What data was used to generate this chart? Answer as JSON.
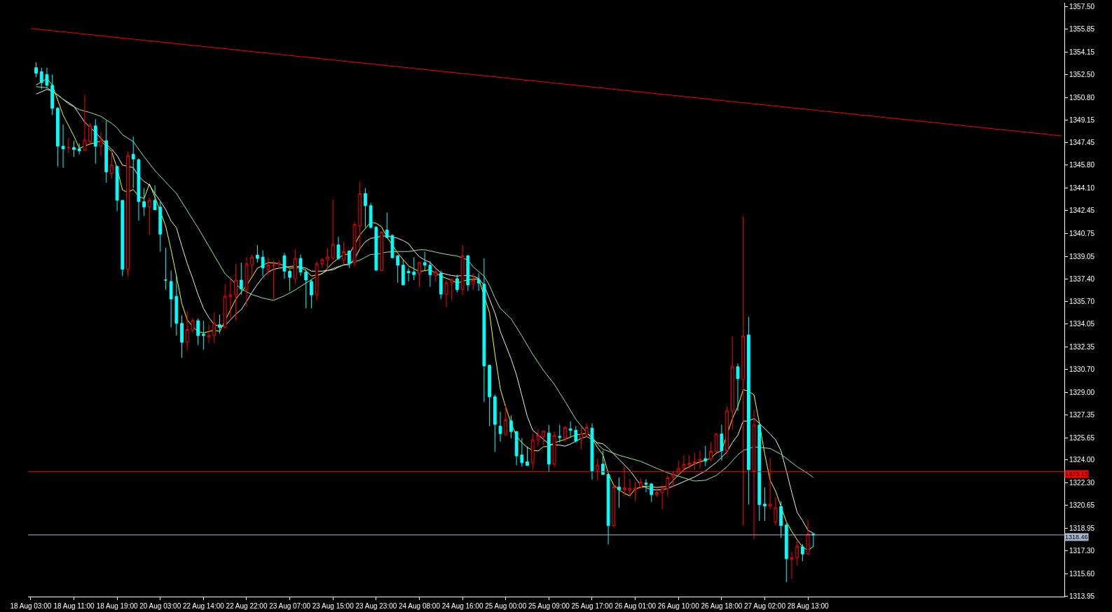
{
  "chart_data": {
    "type": "candlestick",
    "categories": [
      "18 Aug 03:00",
      null,
      null,
      null,
      null,
      null,
      null,
      null,
      "18 Aug 11:00",
      null,
      null,
      null,
      null,
      null,
      null,
      null,
      "18 Aug 19:00",
      null,
      null,
      null,
      null,
      null,
      null,
      null,
      "20 Aug 03:00",
      null,
      null,
      null,
      null,
      null,
      null,
      null,
      "22 Aug 14:00",
      null,
      null,
      null,
      null,
      null,
      null,
      null,
      "22 Aug 22:00",
      null,
      null,
      null,
      null,
      null,
      null,
      null,
      "23 Aug 07:00",
      null,
      null,
      null,
      null,
      null,
      null,
      null,
      "23 Aug 15:00",
      null,
      null,
      null,
      null,
      null,
      null,
      null,
      "23 Aug 23:00",
      null,
      null,
      null,
      null,
      null,
      null,
      null,
      "24 Aug 08:00",
      null,
      null,
      null,
      null,
      null,
      null,
      null,
      "24 Aug 16:00",
      null,
      null,
      null,
      null,
      null,
      null,
      null,
      "25 Aug 00:00",
      null,
      null,
      null,
      null,
      null,
      null,
      null,
      "25 Aug 09:00",
      null,
      null,
      null,
      null,
      null,
      null,
      null,
      "25 Aug 17:00",
      null,
      null,
      null,
      null,
      null,
      null,
      null,
      "26 Aug 01:00",
      null,
      null,
      null,
      null,
      null,
      null,
      null,
      "26 Aug 10:00",
      null,
      null,
      null,
      null,
      null,
      null,
      null,
      "26 Aug 18:00",
      null,
      null,
      null,
      null,
      null,
      null,
      null,
      "27 Aug 02:00",
      null,
      null,
      null,
      null,
      null,
      null,
      null,
      "28 Aug 13:00",
      null,
      null,
      null,
      null,
      null,
      null,
      null,
      null,
      null,
      null,
      null,
      null,
      null,
      null,
      null,
      null,
      null,
      null,
      null,
      null,
      null,
      null,
      null,
      null,
      null,
      null,
      null,
      null,
      null,
      null,
      null,
      null,
      null,
      null,
      null,
      null,
      null,
      null,
      null,
      null,
      null,
      null,
      null,
      null,
      null,
      null,
      null
    ],
    "ohlc": [
      null,
      [
        1353.0,
        1353.4,
        1352.3,
        1352.6
      ],
      [
        1352.7,
        1353.0,
        1351.4,
        1351.9
      ],
      [
        1352.5,
        1353.0,
        1351.5,
        1351.7
      ],
      [
        1351.7,
        1352.5,
        1349.5,
        1350.0
      ],
      [
        1350.0,
        1350.1,
        1345.7,
        1347.2
      ],
      [
        1347.2,
        1348.8,
        1345.6,
        1347.0
      ],
      [
        1347.1,
        1347.8,
        1346.7,
        1347.1
      ],
      [
        1347.1,
        1347.6,
        1346.4,
        1346.95
      ],
      [
        1347.0,
        1347.4,
        1346.6,
        1346.85
      ],
      [
        1346.9,
        1351.0,
        1346.85,
        1347.65
      ],
      [
        1347.5,
        1348.9,
        1347.4,
        1348.7
      ],
      [
        1348.7,
        1349.2,
        1345.9,
        1347.2
      ],
      [
        1347.2,
        1348.3,
        1346.5,
        1347.6
      ],
      [
        1347.6,
        1349.1,
        1344.5,
        1345.3
      ],
      [
        1345.2,
        1346.9,
        1344.8,
        1345.8
      ],
      [
        1345.7,
        1345.75,
        1342.4,
        1343.2
      ],
      [
        1343.2,
        1343.2,
        1337.6,
        1338.1
      ],
      [
        1338.1,
        1346.8,
        1337.6,
        1346.5
      ],
      [
        1346.6,
        1347.9,
        1344.1,
        1346.25
      ],
      [
        1346.2,
        1346.3,
        1341.7,
        1343.1
      ],
      [
        1343.1,
        1344.1,
        1342.05,
        1342.7
      ],
      [
        1342.7,
        1343.4,
        1340.65,
        1343.2
      ],
      [
        1343.2,
        1344.3,
        1342.48,
        1342.5
      ],
      [
        1342.7,
        1343.1,
        1339.4,
        1340.7
      ],
      [
        1337.3,
        1339.7,
        1336.6,
        1337.3
      ],
      [
        1337.2,
        1338.0,
        1333.8,
        1335.9
      ],
      [
        1336.1,
        1337.6,
        1333.2,
        1334.1
      ],
      [
        1334.1,
        1334.7,
        1331.55,
        1332.7
      ],
      [
        1332.7,
        1335.0,
        1332.15,
        1333.65
      ],
      [
        1333.6,
        1334.5,
        1333.4,
        1334.3
      ],
      [
        1334.3,
        1334.45,
        1332.5,
        1333.2
      ],
      [
        1333.3,
        1334.3,
        1332.15,
        1333.2
      ],
      [
        1333.1,
        1334.0,
        1332.65,
        1333.2
      ],
      [
        1333.2,
        1334.9,
        1332.65,
        1334.1
      ],
      [
        1334.0,
        1334.75,
        1333.35,
        1333.8
      ],
      [
        1333.8,
        1337.0,
        1333.7,
        1336.1
      ],
      [
        1336.1,
        1337.4,
        1334.5,
        1336.2
      ],
      [
        1336.2,
        1338.5,
        1334.3,
        1337.3
      ],
      [
        1337.3,
        1338.6,
        1336.2,
        1336.65
      ],
      [
        1336.6,
        1339.0,
        1335.3,
        1338.5
      ],
      [
        1338.4,
        1339.2,
        1337.6,
        1339.0
      ],
      [
        1339.15,
        1339.9,
        1338.6,
        1338.9
      ],
      [
        1339.0,
        1339.5,
        1337.6,
        1338.2
      ],
      [
        1338.1,
        1339.0,
        1337.6,
        1338.4
      ],
      [
        1338.4,
        1338.7,
        1335.9,
        1338.4
      ],
      [
        1338.45,
        1338.8,
        1338.1,
        1338.55
      ],
      [
        1339.1,
        1339.3,
        1337.4,
        1337.96
      ],
      [
        1337.95,
        1338.1,
        1336.5,
        1337.5
      ],
      [
        1337.4,
        1339.6,
        1337.0,
        1338.9
      ],
      [
        1338.9,
        1339.2,
        1337.6,
        1337.9
      ],
      [
        1337.9,
        1338.1,
        1335.2,
        1337.3
      ],
      [
        1337.2,
        1337.3,
        1335.2,
        1336.2
      ],
      [
        1336.2,
        1338.7,
        1335.8,
        1338.5
      ],
      [
        1338.5,
        1338.95,
        1338.2,
        1338.8
      ],
      [
        1338.8,
        1339.65,
        1338.1,
        1339.0
      ],
      [
        1338.95,
        1343.25,
        1338.8,
        1339.93
      ],
      [
        1339.9,
        1340.5,
        1338.8,
        1338.9
      ],
      [
        1338.8,
        1340.1,
        1338.5,
        1339.4
      ],
      [
        1339.45,
        1339.5,
        1338.2,
        1338.56
      ],
      [
        1338.6,
        1341.6,
        1338.3,
        1341.4
      ],
      [
        1341.3,
        1344.6,
        1339.6,
        1343.7
      ],
      [
        1343.7,
        1344.1,
        1341.2,
        1342.8
      ],
      [
        1342.8,
        1343.0,
        1341.1,
        1341.2
      ],
      [
        1341.2,
        1341.3,
        1337.95,
        1338.05
      ],
      [
        1338.0,
        1340.9,
        1337.95,
        1340.85
      ],
      [
        1341.0,
        1342.3,
        1340.4,
        1340.45
      ],
      [
        1340.6,
        1340.7,
        1338.9,
        1338.95
      ],
      [
        1339.1,
        1339.15,
        1337.1,
        1338.4
      ],
      [
        1338.4,
        1338.8,
        1336.9,
        1336.95
      ],
      [
        1337.96,
        1338.2,
        1337.2,
        1337.84
      ],
      [
        1337.9,
        1339.0,
        1337.3,
        1337.7
      ],
      [
        1337.76,
        1338.65,
        1336.8,
        1338.6
      ],
      [
        1338.6,
        1339.4,
        1338.0,
        1338.4
      ],
      [
        1338.4,
        1338.7,
        1336.8,
        1337.7
      ],
      [
        1337.64,
        1338.1,
        1337.2,
        1337.9
      ],
      [
        1337.8,
        1338.0,
        1335.9,
        1336.26
      ],
      [
        1336.26,
        1337.3,
        1335.3,
        1337.1
      ],
      [
        1337.1,
        1337.4,
        1335.8,
        1337.34
      ],
      [
        1337.4,
        1337.7,
        1336.4,
        1336.6
      ],
      [
        1336.6,
        1339.9,
        1336.2,
        1339.1
      ],
      [
        1339.1,
        1339.15,
        1336.5,
        1336.94
      ],
      [
        1336.99,
        1337.8,
        1336.6,
        1337.3
      ],
      [
        1337.33,
        1337.8,
        1336.5,
        1337.08
      ],
      [
        1337.0,
        1338.9,
        1328.3,
        1330.96
      ],
      [
        1331.0,
        1331.05,
        1326.5,
        1328.67
      ],
      [
        1328.67,
        1328.84,
        1324.6,
        1326.63
      ],
      [
        1326.5,
        1327.56,
        1325.35,
        1325.95
      ],
      [
        1325.86,
        1328.0,
        1325.8,
        1326.97
      ],
      [
        1326.9,
        1327.3,
        1325.6,
        1326.1
      ],
      [
        1326.1,
        1326.15,
        1323.6,
        1324.3
      ],
      [
        1324.37,
        1325.6,
        1323.5,
        1323.8
      ],
      [
        1323.86,
        1325.0,
        1323.57,
        1323.6
      ],
      [
        1323.8,
        1325.95,
        1323.3,
        1325.49
      ],
      [
        1325.49,
        1326.3,
        1325.05,
        1325.83
      ],
      [
        1325.73,
        1326.2,
        1325.1,
        1326.12
      ],
      [
        1326.0,
        1326.6,
        1323.1,
        1323.7
      ],
      [
        1323.7,
        1326.1,
        1323.45,
        1325.8
      ],
      [
        1325.75,
        1326.6,
        1325.3,
        1325.66
      ],
      [
        1325.6,
        1326.5,
        1325.35,
        1326.41
      ],
      [
        1326.3,
        1326.85,
        1325.7,
        1326.2
      ],
      [
        1326.2,
        1326.5,
        1325.27,
        1325.4
      ],
      [
        1325.6,
        1326.46,
        1324.8,
        1325.95
      ],
      [
        1325.86,
        1326.7,
        1325.7,
        1326.4
      ],
      [
        1326.36,
        1326.7,
        1322.55,
        1323.19
      ],
      [
        1323.28,
        1324.1,
        1322.5,
        1323.63
      ],
      [
        1323.7,
        1324.7,
        1322.9,
        1322.93
      ],
      [
        1322.93,
        1322.95,
        1317.75,
        1319.15
      ],
      [
        1319.15,
        1322.05,
        1319.0,
        1322.0
      ],
      [
        1322.0,
        1322.7,
        1320.47,
        1321.8
      ],
      [
        1321.8,
        1323.5,
        1321.35,
        1321.93
      ],
      [
        1321.75,
        1322.58,
        1321.3,
        1321.88
      ],
      [
        1321.82,
        1322.35,
        1320.95,
        1321.93
      ],
      [
        1321.99,
        1322.67,
        1321.93,
        1322.35
      ],
      [
        1322.3,
        1322.58,
        1321.62,
        1322.2
      ],
      [
        1322.23,
        1322.3,
        1320.9,
        1321.44
      ],
      [
        1321.44,
        1321.88,
        1321.27,
        1321.58
      ],
      [
        1321.58,
        1322.14,
        1320.35,
        1321.88
      ],
      [
        1321.88,
        1322.88,
        1321.3,
        1322.67
      ],
      [
        1322.76,
        1323.11,
        1321.99,
        1322.93
      ],
      [
        1322.98,
        1323.95,
        1322.93,
        1323.37
      ],
      [
        1323.4,
        1324.34,
        1323.07,
        1323.68
      ],
      [
        1323.67,
        1324.34,
        1323.34,
        1323.75
      ],
      [
        1323.77,
        1324.51,
        1323.28,
        1323.86
      ],
      [
        1323.95,
        1324.69,
        1323.34,
        1324.04
      ],
      [
        1324.1,
        1325.04,
        1323.55,
        1323.93
      ],
      [
        1324.07,
        1325.34,
        1323.9,
        1324.65
      ],
      [
        1324.65,
        1326.0,
        1324.6,
        1325.92
      ],
      [
        1325.92,
        1326.62,
        1323.95,
        1324.69
      ],
      [
        1324.69,
        1327.97,
        1324.43,
        1327.62
      ],
      [
        1327.62,
        1333.12,
        1326.27,
        1330.92
      ],
      [
        1330.89,
        1331.13,
        1327.62,
        1330.01
      ],
      [
        1329.96,
        1342.04,
        1319.16,
        1333.15
      ],
      [
        1333.24,
        1334.58,
        1320.7,
        1323.28
      ],
      [
        1323.19,
        1327.71,
        1318.13,
        1326.58
      ],
      [
        1326.58,
        1326.6,
        1319.5,
        1320.7
      ],
      [
        1320.74,
        1321.97,
        1319.5,
        1320.6
      ],
      [
        1320.6,
        1324.16,
        1320.35,
        1320.74
      ],
      [
        1319.42,
        1321.23,
        1319.19,
        1320.47
      ],
      [
        1320.56,
        1320.95,
        1318.24,
        1319.15
      ],
      [
        1319.19,
        1319.33,
        1314.97,
        1316.7
      ],
      [
        1316.63,
        1317.26,
        1315.2,
        1316.77
      ],
      [
        1316.79,
        1318.05,
        1316.2,
        1317.61
      ],
      [
        1317.58,
        1317.79,
        1316.52,
        1317.05
      ],
      [
        1317.05,
        1319.59,
        1317.0,
        1318.54
      ],
      [
        1318.54,
        1318.56,
        1317.57,
        1318.46
      ],
      null,
      null,
      null,
      null,
      null,
      null,
      null,
      null,
      null,
      null,
      null,
      null,
      null,
      null,
      null,
      null,
      null,
      null,
      null,
      null,
      null,
      null,
      null,
      null,
      null,
      null,
      null,
      null,
      null,
      null,
      null,
      null,
      null,
      null,
      null,
      null,
      null,
      null,
      null,
      null,
      null,
      null,
      null,
      null,
      null,
      null
    ],
    "series": [
      {
        "type": "line",
        "color": "#ffff00",
        "values": [
          null,
          1351.72,
          null,
          1352.2,
          1351.72,
          null,
          1349.5,
          null,
          1347.95,
          1347.05,
          null,
          1347.36,
          null,
          1347.58,
          null,
          1346.8,
          1345.57,
          1343.96,
          1343.79,
          1344.0,
          1343.48,
          1343.33,
          1344.4,
          1343.45,
          null,
          1341.3,
          1339.54,
          1337.6,
          1335.55,
          1334.36,
          1333.85,
          1333.5,
          1333.39,
          null,
          1333.6,
          1333.5,
          null,
          null,
          1335.9,
          null,
          1336.9,
          null,
          1338.18,
          null,
          1338.6,
          null,
          1338.52,
          null,
          1338.18,
          null,
          1338.23,
          1338.0,
          1337.6,
          null,
          1337.76,
          null,
          1338.6,
          null,
          1339.2,
          1339.2,
          null,
          1340.65,
          null,
          1341.58,
          1341.5,
          1341.24,
          1340.48,
          null,
          1339.29,
          null,
          1338.35,
          null,
          1337.93,
          null,
          1338.06,
          null,
          1337.59,
          null,
          1337.28,
          1337.08,
          null,
          1337.33,
          null,
          1337.39,
          null,
          1334.87,
          1331.81,
          1329.26,
          1327.9,
          1326.71,
          1325.78,
          1325.27,
          1324.93,
          1324.71,
          1324.67,
          1324.98,
          1325.0,
          1325.27,
          null,
          1325.52,
          null,
          1325.86,
          1325.9,
          1326.0,
          1325.6,
          1324.93,
          1324.4,
          1323.02,
          1322.14,
          1321.79,
          1321.53,
          1321.35,
          1321.88,
          null,
          1322.05,
          null,
          1321.97,
          null,
          1322.05,
          1322.49,
          null,
          1323.28,
          null,
          1323.72,
          null,
          1323.99,
          1324.11,
          1324.51,
          1324.69,
          null,
          1327.06,
          1327.94,
          1329.2,
          1329.08,
          1328.82,
          1326.71,
          1324.42,
          1322.49,
          1321.7,
          null,
          1319.42,
          1318.72,
          1318.1,
          1317.57,
          1317.31,
          1317.61,
          null,
          null,
          null,
          null,
          null,
          null,
          null,
          null,
          null,
          null,
          null,
          null,
          null,
          null,
          null,
          null,
          null,
          null,
          null,
          null,
          null,
          null,
          null,
          null,
          null,
          null,
          null,
          null,
          null,
          null,
          null,
          null,
          null,
          null,
          null,
          null,
          null,
          null,
          null,
          null,
          null,
          null,
          null,
          null,
          null,
          null
        ]
      },
      {
        "type": "line",
        "color": "#f0f0f0",
        "values": [
          null,
          1351.05,
          1351.22,
          1351.4,
          1351.27,
          null,
          1350.67,
          null,
          1350.16,
          null,
          1348.97,
          null,
          1348.21,
          null,
          1347.36,
          1346.97,
          1346.51,
          1345.8,
          1345.71,
          1345.61,
          1344.98,
          1344.59,
          1344.33,
          1343.7,
          1343.14,
          1342.52,
          1341.67,
          1341.16,
          1339.8,
          1338.52,
          1337.42,
          1336.23,
          1335.21,
          1334.53,
          1334.02,
          1333.88,
          1333.93,
          1334.36,
          1334.78,
          1335.12,
          1335.72,
          1336.4,
          1336.99,
          1337.5,
          1337.89,
          1338.1,
          1338.18,
          null,
          1338.3,
          1338.35,
          null,
          1338.18,
          1337.96,
          null,
          1337.96,
          null,
          1338.06,
          null,
          1338.44,
          1338.44,
          1338.86,
          1339.63,
          1340.14,
          1340.39,
          1340.44,
          1340.56,
          1340.56,
          1340.48,
          1340.39,
          1340.22,
          1340.0,
          1339.46,
          1339.03,
          1338.78,
          1338.61,
          1338.18,
          1337.84,
          1337.73,
          1337.64,
          1337.59,
          1337.64,
          1337.64,
          1337.59,
          1337.42,
          1336.91,
          1335.89,
          1334.87,
          1333.51,
          1332.49,
          1331.47,
          1330.28,
          1328.75,
          1327.22,
          1326.2,
          1325.86,
          1325.52,
          1325.18,
          1325.1,
          1325.1,
          1325.02,
          1325.18,
          1325.39,
          1325.6,
          1325.73,
          1325.52,
          1325.27,
          1325.2,
          1324.86,
          null,
          1324.04,
          null,
          1323.23,
          null,
          1322.14,
          null,
          1321.79,
          null,
          1321.79,
          null,
          1322.05,
          null,
          1322.4,
          null,
          1322.75,
          null,
          1323.19,
          null,
          1323.81,
          null,
          1324.6,
          1325.3,
          1325.83,
          1326.88,
          1326.88,
          1327.06,
          1326.71,
          null,
          1325.92,
          1325.48,
          1324.69,
          1323.19,
          1321.6,
          1320.12,
          1319.51,
          1318.8,
          1318.59,
          null,
          null,
          null,
          null,
          null,
          null,
          null,
          null,
          null,
          null,
          null,
          null,
          null,
          null,
          null,
          null,
          null,
          null,
          null,
          null,
          null,
          null,
          null,
          null,
          null,
          null,
          null,
          null,
          null,
          null,
          null,
          null,
          null,
          null,
          null,
          null,
          null,
          null,
          null,
          null,
          null,
          null,
          null,
          null,
          null,
          null
        ]
      },
      {
        "type": "line",
        "color": "#98e898",
        "values": [
          null,
          1351.6,
          null,
          1351.52,
          null,
          1351.0,
          null,
          1350.33,
          null,
          1349.9,
          null,
          1349.69,
          null,
          1349.4,
          null,
          1348.89,
          1348.55,
          1348.04,
          null,
          1347.53,
          null,
          1346.42,
          null,
          1345.4,
          null,
          1344.55,
          null,
          1343.7,
          null,
          1342.43,
          null,
          1341.16,
          null,
          1339.8,
          null,
          1338.44,
          1337.76,
          1337.42,
          1336.99,
          1336.65,
          null,
          1336.23,
          null,
          1335.97,
          null,
          1335.8,
          null,
          1336.14,
          null,
          1336.57,
          null,
          1337.08,
          null,
          1337.59,
          null,
          1338.01,
          null,
          1338.3,
          null,
          1338.52,
          null,
          1338.78,
          null,
          1339.2,
          1339.2,
          null,
          1339.37,
          null,
          1339.41,
          null,
          1339.41,
          null,
          1339.54,
          1339.54,
          null,
          1339.37,
          null,
          1339.2,
          null,
          1339.08,
          null,
          1338.78,
          1338.27,
          1337.93,
          1337.59,
          1336.91,
          1335.97,
          1335.21,
          null,
          1334.44,
          null,
          1333.17,
          null,
          1331.81,
          null,
          1330.62,
          null,
          1329.6,
          null,
          1328.33,
          null,
          1327.0,
          null,
          1326.03,
          1325.7,
          1325.18,
          1324.8,
          null,
          null,
          1324.35,
          null,
          null,
          null,
          1323.9,
          null,
          1323.55,
          null,
          null,
          1323.05,
          null,
          1322.8,
          null,
          null,
          1322.44,
          null,
          1322.5,
          null,
          1322.85,
          null,
          1323.5,
          null,
          1324.38,
          1324.7,
          null,
          1324.97,
          null,
          null,
          1324.85,
          null,
          1324.42,
          null,
          null,
          1323.5,
          null,
          1323.0,
          1322.7,
          null,
          null,
          null,
          null,
          null,
          null,
          null,
          null,
          null,
          null,
          null,
          null,
          null,
          null,
          null,
          null,
          null,
          null,
          null,
          null,
          null,
          null,
          null,
          null,
          null,
          null,
          null,
          null,
          null,
          null,
          null,
          null,
          null,
          null,
          null,
          null,
          null,
          null,
          null,
          null,
          null,
          null,
          null,
          null,
          null,
          null
        ]
      },
      {
        "type": "line",
        "color": "#ff0000",
        "values": [
          1355.9,
          null,
          null,
          null,
          null,
          null,
          null,
          null,
          null,
          null,
          null,
          null,
          null,
          null,
          null,
          null,
          null,
          null,
          null,
          null,
          null,
          null,
          null,
          null,
          null,
          null,
          null,
          null,
          null,
          null,
          null,
          null,
          null,
          null,
          null,
          null,
          null,
          null,
          null,
          null,
          null,
          null,
          null,
          null,
          null,
          null,
          null,
          null,
          null,
          null,
          null,
          null,
          null,
          null,
          null,
          null,
          null,
          null,
          null,
          null,
          null,
          null,
          null,
          null,
          null,
          null,
          null,
          null,
          null,
          null,
          null,
          null,
          null,
          null,
          null,
          null,
          null,
          null,
          null,
          null,
          null,
          null,
          null,
          null,
          null,
          null,
          null,
          null,
          null,
          null,
          null,
          null,
          null,
          null,
          null,
          null,
          null,
          null,
          null,
          null,
          null,
          null,
          null,
          null,
          null,
          null,
          null,
          null,
          null,
          null,
          null,
          null,
          null,
          null,
          null,
          null,
          null,
          null,
          null,
          null,
          null,
          null,
          null,
          null,
          null,
          null,
          null,
          null,
          null,
          null,
          null,
          null,
          null,
          null,
          null,
          null,
          null,
          null,
          null,
          null,
          null,
          null,
          null,
          null,
          null,
          null,
          null,
          null,
          null,
          null,
          null,
          null,
          null,
          null,
          null,
          null,
          null,
          null,
          null,
          null,
          null,
          null,
          null,
          null,
          null,
          null,
          null,
          null,
          null,
          null,
          null,
          null,
          null,
          null,
          null,
          null,
          null,
          null,
          null,
          null,
          null,
          null,
          null,
          null,
          null,
          null,
          null,
          null,
          null,
          null,
          null,
          1347.96
        ]
      }
    ],
    "ylim": [
      1313.9,
      1357.8
    ],
    "yticks": [
      {
        "value": 1357.5,
        "label": "1357.50"
      },
      {
        "value": 1355.85,
        "label": "1355.85"
      },
      {
        "value": 1354.15,
        "label": "1354.15"
      },
      {
        "value": 1352.5,
        "label": "1352.50"
      },
      {
        "value": 1350.8,
        "label": "1350.80"
      },
      {
        "value": 1349.15,
        "label": "1349.15"
      },
      {
        "value": 1347.45,
        "label": "1347.45"
      },
      {
        "value": 1345.8,
        "label": "1345.80"
      },
      {
        "value": 1344.1,
        "label": "1344.10"
      },
      {
        "value": 1342.45,
        "label": "1342.45"
      },
      {
        "value": 1340.75,
        "label": "1340.75"
      },
      {
        "value": 1339.05,
        "label": "1339.05"
      },
      {
        "value": 1337.4,
        "label": "1337.40"
      },
      {
        "value": 1335.7,
        "label": "1335.70"
      },
      {
        "value": 1334.05,
        "label": "1334.05"
      },
      {
        "value": 1332.35,
        "label": "1332.35"
      },
      {
        "value": 1330.7,
        "label": "1330.70"
      },
      {
        "value": 1329.0,
        "label": "1329.00"
      },
      {
        "value": 1327.35,
        "label": "1327.35"
      },
      {
        "value": 1325.65,
        "label": "1325.65"
      },
      {
        "value": 1324.0,
        "label": "1324.00"
      },
      {
        "value": 1322.3,
        "label": "1322.30"
      },
      {
        "value": 1320.65,
        "label": "1320.65"
      },
      {
        "value": 1318.95,
        "label": "1318.95"
      },
      {
        "value": 1317.3,
        "label": "1317.30"
      },
      {
        "value": 1315.6,
        "label": "1315.60"
      },
      {
        "value": 1313.95,
        "label": "1313.95"
      }
    ],
    "ref_lines": [
      {
        "axis": "y",
        "value": 1323.13,
        "label": "1323.13",
        "color": "#ff0000"
      },
      {
        "axis": "y",
        "value": 1318.46,
        "label": "1318.46",
        "color": "#a8b8d0"
      }
    ]
  }
}
